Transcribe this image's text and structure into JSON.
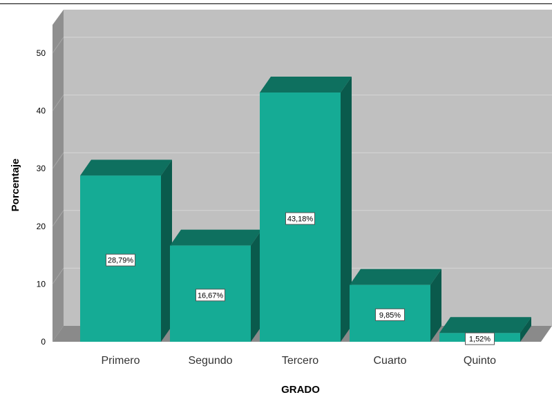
{
  "chart_data": {
    "type": "bar",
    "xlabel": "GRADO",
    "ylabel": "Porcentaje",
    "categories": [
      "Primero",
      "Segundo",
      "Tercero",
      "Cuarto",
      "Quinto"
    ],
    "values": [
      28.79,
      16.67,
      43.18,
      9.85,
      1.52
    ],
    "data_labels": [
      "28,79%",
      "16,67%",
      "43,18%",
      "9,85%",
      "1,52%"
    ],
    "yticks": [
      "0",
      "10",
      "20",
      "30",
      "40",
      "50"
    ],
    "ylim": [
      0,
      52
    ],
    "grid": true,
    "legend": "none",
    "colors": {
      "bar_front": "#15ab95",
      "bar_top": "#0e705f",
      "bar_side": "#0a5a4c",
      "plot_back": "#c0c0c0",
      "plot_side": "#8f8f8f",
      "floor": "#8a8a8a",
      "gridline": "#d6d6d6"
    }
  }
}
